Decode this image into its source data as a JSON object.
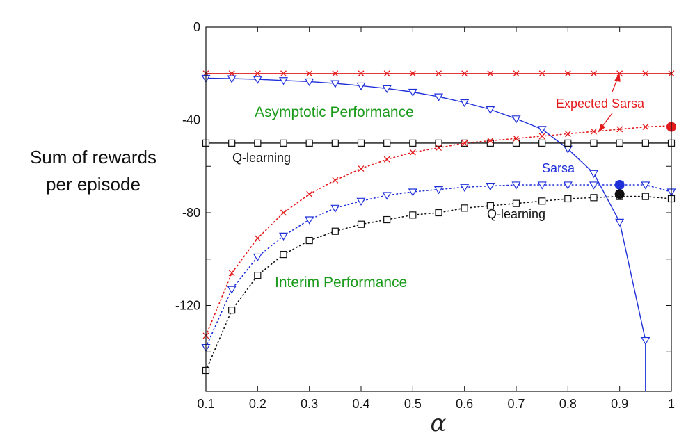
{
  "chart_data": {
    "type": "line",
    "title": "",
    "xlabel": "α",
    "ylabel_lines": [
      "Sum of rewards",
      "per episode"
    ],
    "xlim": [
      0.1,
      1.0
    ],
    "ylim": [
      -157,
      0
    ],
    "x_ticks": [
      0.1,
      0.2,
      0.3,
      0.4,
      0.5,
      0.6,
      0.7,
      0.8,
      0.9,
      1.0
    ],
    "x_tick_labels": [
      "0.1",
      "0.2",
      "0.3",
      "0.4",
      "0.5",
      "0.6",
      "0.7",
      "0.8",
      "0.9",
      "1"
    ],
    "y_ticks": [
      0,
      -40,
      -80,
      -120
    ],
    "y_tick_labels": [
      "0",
      "-40",
      "-80",
      "-120"
    ],
    "y_minor_ticks": [
      -20,
      -60,
      -100,
      -140
    ],
    "grid": false,
    "colors": {
      "red": "#e31a1c",
      "blue": "#1f30d9",
      "black": "#111111",
      "green": "#1a9a1a"
    },
    "series": [
      {
        "name": "Expected Sarsa",
        "group": "asymptotic",
        "color": "#e31a1c",
        "marker": "x",
        "line": "solid",
        "x": [
          0.1,
          0.15,
          0.2,
          0.25,
          0.3,
          0.35,
          0.4,
          0.45,
          0.5,
          0.55,
          0.6,
          0.65,
          0.7,
          0.75,
          0.8,
          0.85,
          0.9,
          0.95,
          1.0
        ],
        "y": [
          -20,
          -20,
          -20,
          -20,
          -20,
          -20,
          -20,
          -20,
          -20,
          -20,
          -20,
          -20,
          -20,
          -20,
          -20,
          -20,
          -20,
          -20,
          -20
        ]
      },
      {
        "name": "Sarsa",
        "group": "asymptotic",
        "color": "#1f30d9",
        "marker": "triangle-down",
        "line": "solid",
        "x": [
          0.1,
          0.15,
          0.2,
          0.25,
          0.3,
          0.35,
          0.4,
          0.45,
          0.5,
          0.55,
          0.6,
          0.65,
          0.7,
          0.75,
          0.8,
          0.85,
          0.9,
          0.95
        ],
        "y": [
          -22,
          -22.2,
          -22.5,
          -23,
          -23.5,
          -24.3,
          -25.3,
          -26.5,
          -28,
          -30,
          -32.5,
          -35.5,
          -39.5,
          -44,
          -52.5,
          -63,
          -84,
          -135
        ],
        "tail_to_bottom_x": 0.95
      },
      {
        "name": "Q-learning",
        "group": "asymptotic",
        "color": "#111111",
        "marker": "square",
        "line": "solid",
        "x": [
          0.1,
          0.15,
          0.2,
          0.25,
          0.3,
          0.35,
          0.4,
          0.45,
          0.5,
          0.55,
          0.6,
          0.65,
          0.7,
          0.75,
          0.8,
          0.85,
          0.9,
          0.95,
          1.0
        ],
        "y": [
          -50,
          -50,
          -50,
          -50,
          -50,
          -50,
          -50,
          -50,
          -50,
          -50,
          -50,
          -50,
          -50,
          -50,
          -50,
          -50,
          -50,
          -50,
          -50
        ]
      },
      {
        "name": "Expected Sarsa",
        "group": "interim",
        "color": "#e31a1c",
        "marker": "x",
        "line": "dotted",
        "x": [
          0.1,
          0.15,
          0.2,
          0.25,
          0.3,
          0.35,
          0.4,
          0.45,
          0.5,
          0.55,
          0.6,
          0.65,
          0.7,
          0.75,
          0.8,
          0.85,
          0.9,
          0.95,
          1.0
        ],
        "y": [
          -133,
          -106,
          -91,
          -80,
          -72,
          -66,
          -61,
          -57,
          -54,
          -52,
          -50,
          -49,
          -48,
          -47,
          -46,
          -45,
          -44,
          -43,
          -42.5
        ]
      },
      {
        "name": "Sarsa",
        "group": "interim",
        "color": "#1f30d9",
        "marker": "triangle-down",
        "line": "dotted",
        "x": [
          0.1,
          0.15,
          0.2,
          0.25,
          0.3,
          0.35,
          0.4,
          0.45,
          0.5,
          0.55,
          0.6,
          0.65,
          0.7,
          0.75,
          0.8,
          0.85,
          0.9,
          0.95,
          1.0
        ],
        "y": [
          -138,
          -113,
          -99,
          -90,
          -83,
          -78,
          -75,
          -72.5,
          -71,
          -70,
          -69,
          -68.5,
          -68,
          -68,
          -68,
          -68,
          -68,
          -68,
          -71
        ]
      },
      {
        "name": "Q-learning",
        "group": "interim",
        "color": "#111111",
        "marker": "square",
        "line": "dotted",
        "x": [
          0.1,
          0.15,
          0.2,
          0.25,
          0.3,
          0.35,
          0.4,
          0.45,
          0.5,
          0.55,
          0.6,
          0.65,
          0.7,
          0.75,
          0.8,
          0.85,
          0.9,
          0.95,
          1.0
        ],
        "y": [
          -148,
          -122,
          -107,
          -98,
          -92,
          -88,
          -85,
          -83,
          -81,
          -80,
          -78,
          -77,
          -76,
          -75,
          -74,
          -73.5,
          -73,
          -73,
          -74
        ]
      }
    ],
    "highlight_points": [
      {
        "x": 1.0,
        "y": -43,
        "color": "#e31a1c"
      },
      {
        "x": 0.9,
        "y": -68,
        "color": "#1f30d9"
      },
      {
        "x": 0.9,
        "y": -72,
        "color": "#111111"
      }
    ],
    "annotations": {
      "asymptotic": "Asymptotic Performance",
      "interim": "Interim Performance",
      "expected_sarsa": "Expected Sarsa",
      "sarsa": "Sarsa",
      "q_learning_asymptotic": "Q-learning",
      "q_learning_interim": "Q-learning"
    }
  }
}
